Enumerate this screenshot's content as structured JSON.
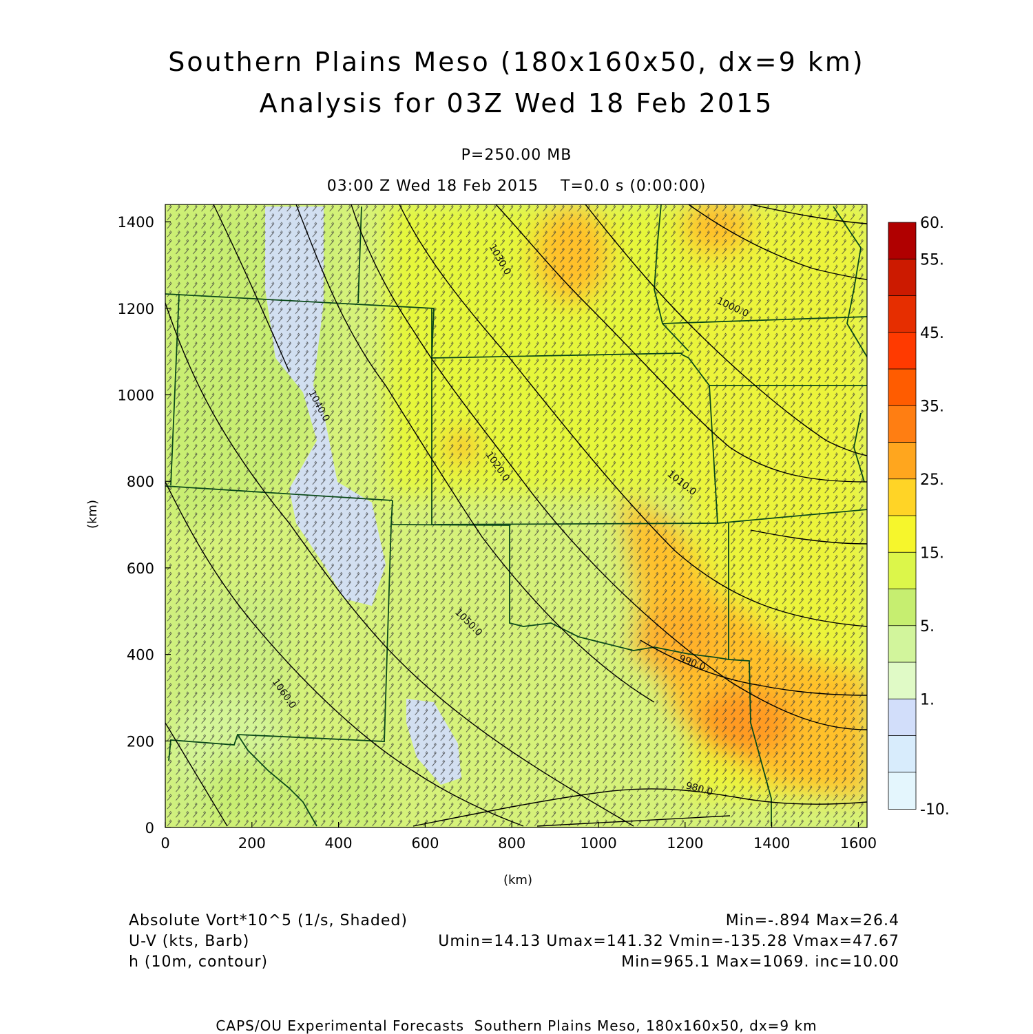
{
  "header": {
    "title_line1": "Southern Plains Meso (180x160x50, dx=9 km)",
    "title_line2": "Analysis for 03Z Wed 18 Feb 2015",
    "level": "P=250.00 MB",
    "time": "03:00 Z Wed 18 Feb 2015    T=0.0 s (0:00:00)"
  },
  "axes": {
    "x_label": "(km)",
    "y_label": "(km)",
    "x_ticks": [
      "0",
      "200",
      "400",
      "600",
      "800",
      "1000",
      "1200",
      "1400",
      "1600"
    ],
    "y_ticks": [
      "0",
      "200",
      "400",
      "600",
      "800",
      "1000",
      "1200",
      "1400"
    ],
    "x_range_km": [
      0,
      1620
    ],
    "y_range_km": [
      0,
      1440
    ]
  },
  "colorbar": {
    "labels": [
      "60.",
      "55.",
      "45.",
      "35.",
      "25.",
      "15.",
      "5.",
      "1.",
      "-10."
    ],
    "colors_top_to_bottom": [
      "#b00000",
      "#cc1a00",
      "#e62e00",
      "#ff3a00",
      "#ff5c00",
      "#ff7e12",
      "#ffa61e",
      "#ffd426",
      "#f6f62c",
      "#dcf64a",
      "#c6ee70",
      "#d2f59c",
      "#e0fac6",
      "#d2defa",
      "#d8ecfc",
      "#e4f6fd"
    ]
  },
  "contour_labels": [
    "1040.0",
    "1030.0",
    "1020.0",
    "1010.0",
    "1000.0",
    "990.0",
    "980.0",
    "1060.0",
    "1050.0",
    "1020.0"
  ],
  "footer": {
    "field1_name": "Absolute Vort*10^5 (1/s, Shaded)",
    "field1_stats": "Min=-.894 Max=26.4",
    "field2_name": "U-V (kts, Barb)",
    "field2_stats": "Umin=14.13 Umax=141.32 Vmin=-135.28 Vmax=47.67",
    "field3_name": "h (10m, contour)",
    "field3_stats": "Min=965.1 Max=1069. inc=10.00"
  },
  "credit": "CAPS/OU Experimental Forecasts  Southern Plains Meso, 180x160x50, dx=9 km"
}
